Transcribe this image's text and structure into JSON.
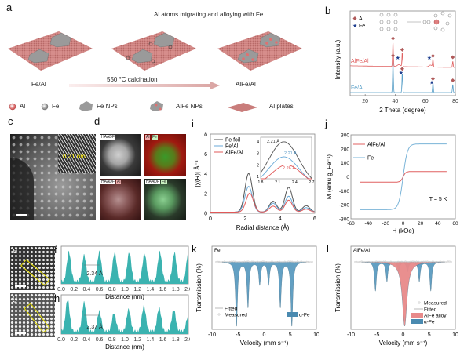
{
  "panels": {
    "a": {
      "label": "a",
      "title": "Al atoms migrating and alloying with Fe",
      "left_label": "Fe/Al",
      "right_label": "AlFe/Al",
      "arrow_label": "550 °C  calcination",
      "legend": [
        {
          "icon": "al-atom-icon",
          "label": "Al"
        },
        {
          "icon": "fe-atom-icon",
          "label": "Fe"
        },
        {
          "icon": "fe-nps-icon",
          "label": "Fe NPs"
        },
        {
          "icon": "alfe-nps-icon",
          "label": "AlFe NPs"
        },
        {
          "icon": "al-plate-icon",
          "label": "Al plates"
        }
      ]
    },
    "c": {
      "label": "c",
      "inset_text": "0.21 nm"
    },
    "d": {
      "label": "d",
      "tiles": [
        {
          "tag": "HAADF",
          "tag2": ""
        },
        {
          "tag": "Al",
          "tag2": "Fe"
        },
        {
          "tag": "HAADF",
          "tag2": "Al"
        },
        {
          "tag": "HAADF",
          "tag2": "Fe"
        }
      ]
    },
    "e": {
      "label": "e"
    },
    "g": {
      "label": "g"
    }
  },
  "chart_data": [
    {
      "id": "b",
      "label": "b",
      "type": "line",
      "title": "",
      "xlabel": "2 Theta (degree)",
      "ylabel": "Intensity (a.u.)",
      "xlim": [
        10,
        80
      ],
      "xticks": [
        20,
        40,
        60,
        80
      ],
      "legend": [
        {
          "marker": "diamond",
          "label": "Al",
          "color": "#b05a5a"
        },
        {
          "marker": "star",
          "label": "Fe",
          "color": "#1f3f8f"
        }
      ],
      "series": [
        {
          "name": "AlFe/Al",
          "color": "#e06060",
          "peaks": [
            [
              38.5,
              1.0
            ],
            [
              44.7,
              0.55
            ],
            [
              65.1,
              0.3
            ],
            [
              78.3,
              0.25
            ]
          ]
        },
        {
          "name": "Fe/Al",
          "color": "#5aa0c8",
          "peaks": [
            [
              38.5,
              1.0
            ],
            [
              44.7,
              0.6
            ],
            [
              65.1,
              0.3
            ],
            [
              78.3,
              0.25
            ]
          ]
        }
      ],
      "markers": {
        "AlFe/Al": {
          "Al": [
            38.5,
            44.7,
            65.1,
            78.3
          ],
          "Fe": [
            42.5,
            63.5
          ]
        },
        "Fe/Al": {
          "Al": [
            38.5,
            44.7,
            65.1,
            78.3
          ],
          "Fe": [
            44.7,
            65.1
          ]
        }
      }
    },
    {
      "id": "f",
      "label": "f",
      "type": "area",
      "xlabel": "Distance (nm)",
      "xlim": [
        0,
        2.0
      ],
      "xticks": [
        "0.0",
        "0.2",
        "0.4",
        "0.6",
        "0.8",
        "1.0",
        "1.2",
        "1.4",
        "1.6",
        "1.8",
        "2.0"
      ],
      "annotation": "2.34 Å",
      "peaks_x": [
        0.12,
        0.36,
        0.6,
        0.84,
        1.07,
        1.31,
        1.55,
        1.78,
        2.0
      ],
      "peak_heights": [
        0.85,
        0.75,
        0.85,
        0.82,
        0.83,
        0.8,
        0.85,
        0.82,
        0.85
      ],
      "color": "#3bb3b0"
    },
    {
      "id": "h",
      "label": "h",
      "type": "area",
      "xlabel": "Distance (nm)",
      "xlim": [
        0,
        2.0
      ],
      "xticks": [
        "0.0",
        "0.2",
        "0.4",
        "0.6",
        "0.8",
        "1.0",
        "1.2",
        "1.4",
        "1.6",
        "1.8",
        "2.0"
      ],
      "annotation": "2.37 Å",
      "peaks_x": [
        0.1,
        0.36,
        0.6,
        0.83,
        1.06,
        1.3,
        1.54,
        1.77,
        2.0
      ],
      "peak_heights": [
        0.88,
        0.8,
        0.55,
        0.5,
        0.6,
        0.7,
        0.65,
        0.6,
        0.45
      ],
      "color": "#3bb3b0"
    },
    {
      "id": "i",
      "label": "i",
      "type": "line",
      "xlabel": "Radial distance (Å)",
      "ylabel": "|χ(R)| Å⁻³",
      "xlim": [
        0,
        6
      ],
      "ylim": [
        0,
        8
      ],
      "xticks": [
        0,
        2,
        4,
        6
      ],
      "yticks": [
        0,
        2,
        4,
        6,
        8
      ],
      "series": [
        {
          "name": "Fe foil",
          "color": "#555555",
          "peaks": [
            [
              2.2,
              3.9
            ],
            [
              3.6,
              1.1
            ],
            [
              4.5,
              2.5
            ],
            [
              5.5,
              0.65
            ]
          ]
        },
        {
          "name": "Fe/Al",
          "color": "#6aaad8",
          "peaks": [
            [
              2.2,
              2.6
            ],
            [
              3.6,
              0.9
            ],
            [
              4.5,
              1.6
            ],
            [
              5.5,
              0.45
            ]
          ]
        },
        {
          "name": "AlFe/Al",
          "color": "#e05858",
          "peaks": [
            [
              2.26,
              1.9
            ],
            [
              3.6,
              0.6
            ],
            [
              4.5,
              1.2
            ],
            [
              5.5,
              0.3
            ]
          ]
        }
      ],
      "inset": {
        "xlim": [
          1.8,
          2.7
        ],
        "ylim": [
          0.8,
          4.4
        ],
        "xticks": [
          "1.8",
          "2.1",
          "2.4",
          "2.7"
        ],
        "yticks": [
          1,
          2,
          3,
          4
        ],
        "annotations": [
          {
            "text": "2.21 Å",
            "color": "#333333"
          },
          {
            "text": "2.21 Å",
            "color": "#5a9ac8"
          },
          {
            "text": "2.26 Å",
            "color": "#e05858"
          }
        ]
      }
    },
    {
      "id": "j",
      "label": "j",
      "type": "line",
      "xlabel": "H (kOe)",
      "ylabel": "M (emu g_Fe⁻¹)",
      "xlim": [
        -60,
        60
      ],
      "ylim": [
        -300,
        300
      ],
      "xticks": [
        -60,
        -40,
        -20,
        0,
        20,
        40,
        60
      ],
      "yticks": [
        -300,
        -200,
        -100,
        0,
        100,
        200,
        300
      ],
      "annotation": "T = 5 K",
      "series": [
        {
          "name": "AlFe/Al",
          "color": "#e06060",
          "saturation": 38,
          "width": 3
        },
        {
          "name": "Fe",
          "color": "#7ab4d8",
          "saturation": 235,
          "width": 5
        }
      ],
      "x_range_data": [
        -50,
        50
      ]
    },
    {
      "id": "k",
      "label": "k",
      "type": "line",
      "xlabel": "Velocity (mm s⁻¹)",
      "ylabel": "Transmission (%)",
      "xlim": [
        -10,
        10
      ],
      "xticks": [
        -10,
        -5,
        0,
        5,
        10
      ],
      "sample": "Fe",
      "legend": [
        {
          "label": "Fitted"
        },
        {
          "label": "Measured"
        },
        {
          "label": "α-Fe",
          "color": "#4a8ab0"
        }
      ],
      "components": [
        {
          "name": "α-Fe",
          "color": "#5b9bc0",
          "lines": [
            [
              -5.3,
              1.0
            ],
            [
              -3.1,
              0.7
            ],
            [
              -0.85,
              0.35
            ],
            [
              0.85,
              0.35
            ],
            [
              3.1,
              0.7
            ],
            [
              5.3,
              1.0
            ]
          ]
        }
      ]
    },
    {
      "id": "l",
      "label": "l",
      "type": "line",
      "xlabel": "Velocity (mm s⁻¹)",
      "ylabel": "Transmission (%)",
      "xlim": [
        -10,
        10
      ],
      "xticks": [
        -10,
        -5,
        0,
        5,
        10
      ],
      "sample": "AlFe/Al",
      "legend": [
        {
          "label": "Measured"
        },
        {
          "label": "Fitted"
        },
        {
          "label": "AlFe alloy",
          "color": "#e88a8a"
        },
        {
          "label": "α-Fe",
          "color": "#4a8ab0"
        }
      ],
      "components": [
        {
          "name": "α-Fe",
          "color": "#5b9bc0",
          "lines": [
            [
              -5.3,
              0.45
            ],
            [
              -3.1,
              0.3
            ],
            [
              -0.85,
              0.15
            ],
            [
              0.85,
              0.15
            ],
            [
              3.1,
              0.3
            ],
            [
              5.3,
              0.45
            ]
          ]
        },
        {
          "name": "AlFe alloy",
          "color": "#e88a8a",
          "lines": [
            [
              0.3,
              1.0
            ]
          ]
        }
      ]
    }
  ]
}
